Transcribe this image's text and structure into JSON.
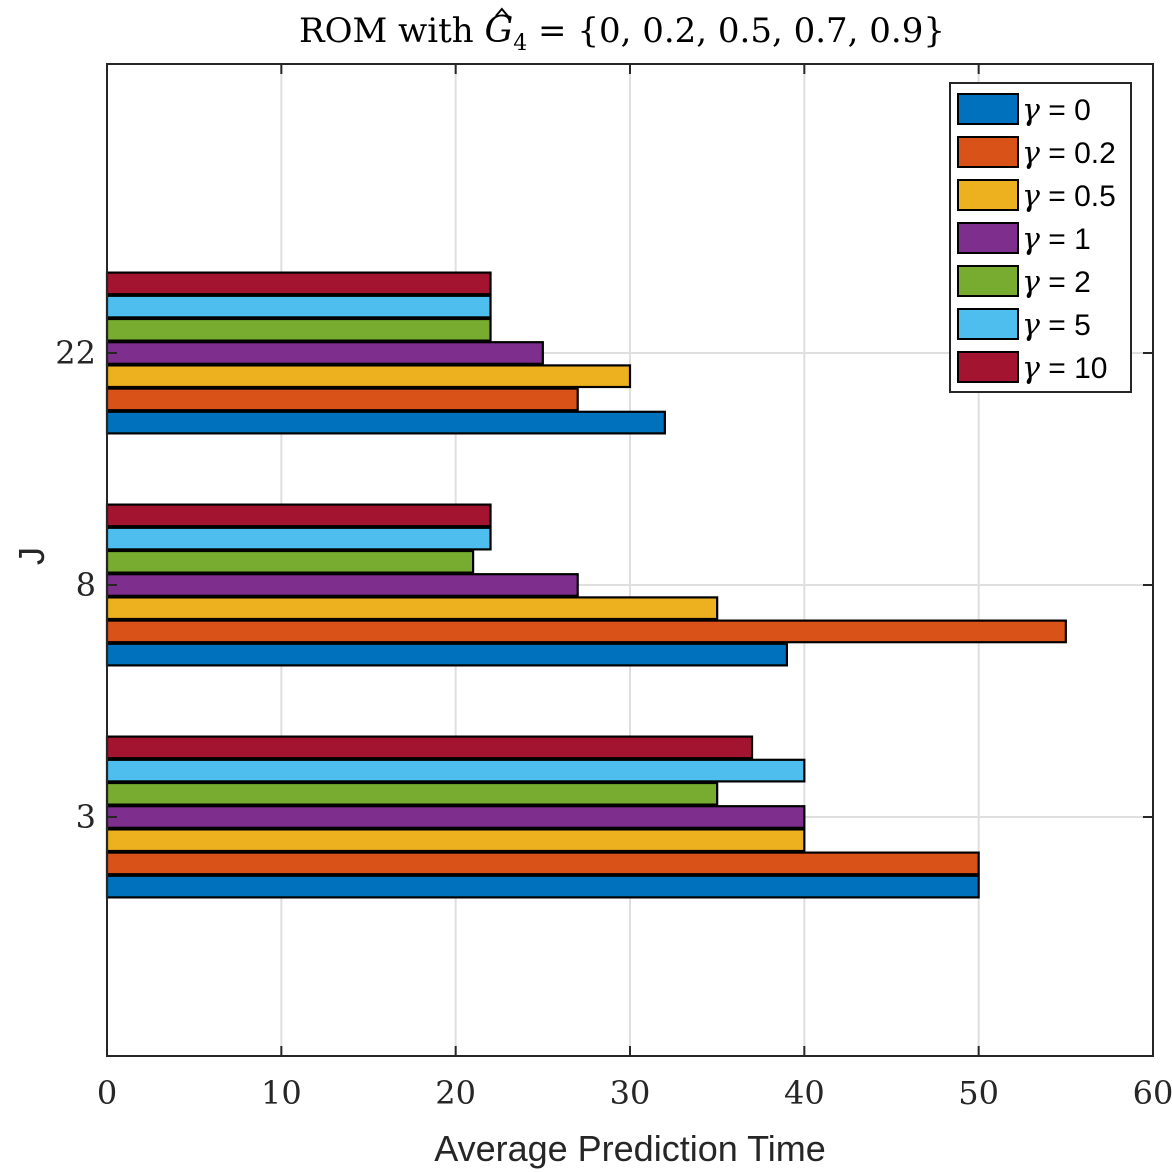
{
  "chart_data": {
    "type": "bar",
    "orientation": "horizontal",
    "title": {
      "prefix": "ROM with ",
      "symbol": "G",
      "subscript": "4",
      "suffix": " = {0, 0.2, 0.5, 0.7, 0.9}"
    },
    "xlabel": "Average Prediction Time",
    "ylabel": "J",
    "categories": [
      "3",
      "8",
      "22"
    ],
    "xlim": [
      0,
      60
    ],
    "xticks": [
      0,
      10,
      20,
      30,
      40,
      50,
      60
    ],
    "grid": true,
    "legend_position": "top-right",
    "legend_symbol": "γ",
    "series": [
      {
        "name": "γ = 0",
        "label": "0",
        "color": "#0072BD",
        "values": [
          50,
          39,
          32
        ]
      },
      {
        "name": "γ = 0.2",
        "label": "0.2",
        "color": "#D95319",
        "values": [
          50,
          55,
          27
        ]
      },
      {
        "name": "γ = 0.5",
        "label": "0.5",
        "color": "#EDB120",
        "values": [
          40,
          35,
          30
        ]
      },
      {
        "name": "γ = 1",
        "label": "1",
        "color": "#7E2F8E",
        "values": [
          40,
          27,
          25
        ]
      },
      {
        "name": "γ = 2",
        "label": "2",
        "color": "#77AC30",
        "values": [
          35,
          21,
          22
        ]
      },
      {
        "name": "γ = 5",
        "label": "5",
        "color": "#4DBEEE",
        "values": [
          40,
          22,
          22
        ]
      },
      {
        "name": "γ = 10",
        "label": "10",
        "color": "#A2142F",
        "values": [
          37,
          22,
          22
        ]
      }
    ]
  }
}
